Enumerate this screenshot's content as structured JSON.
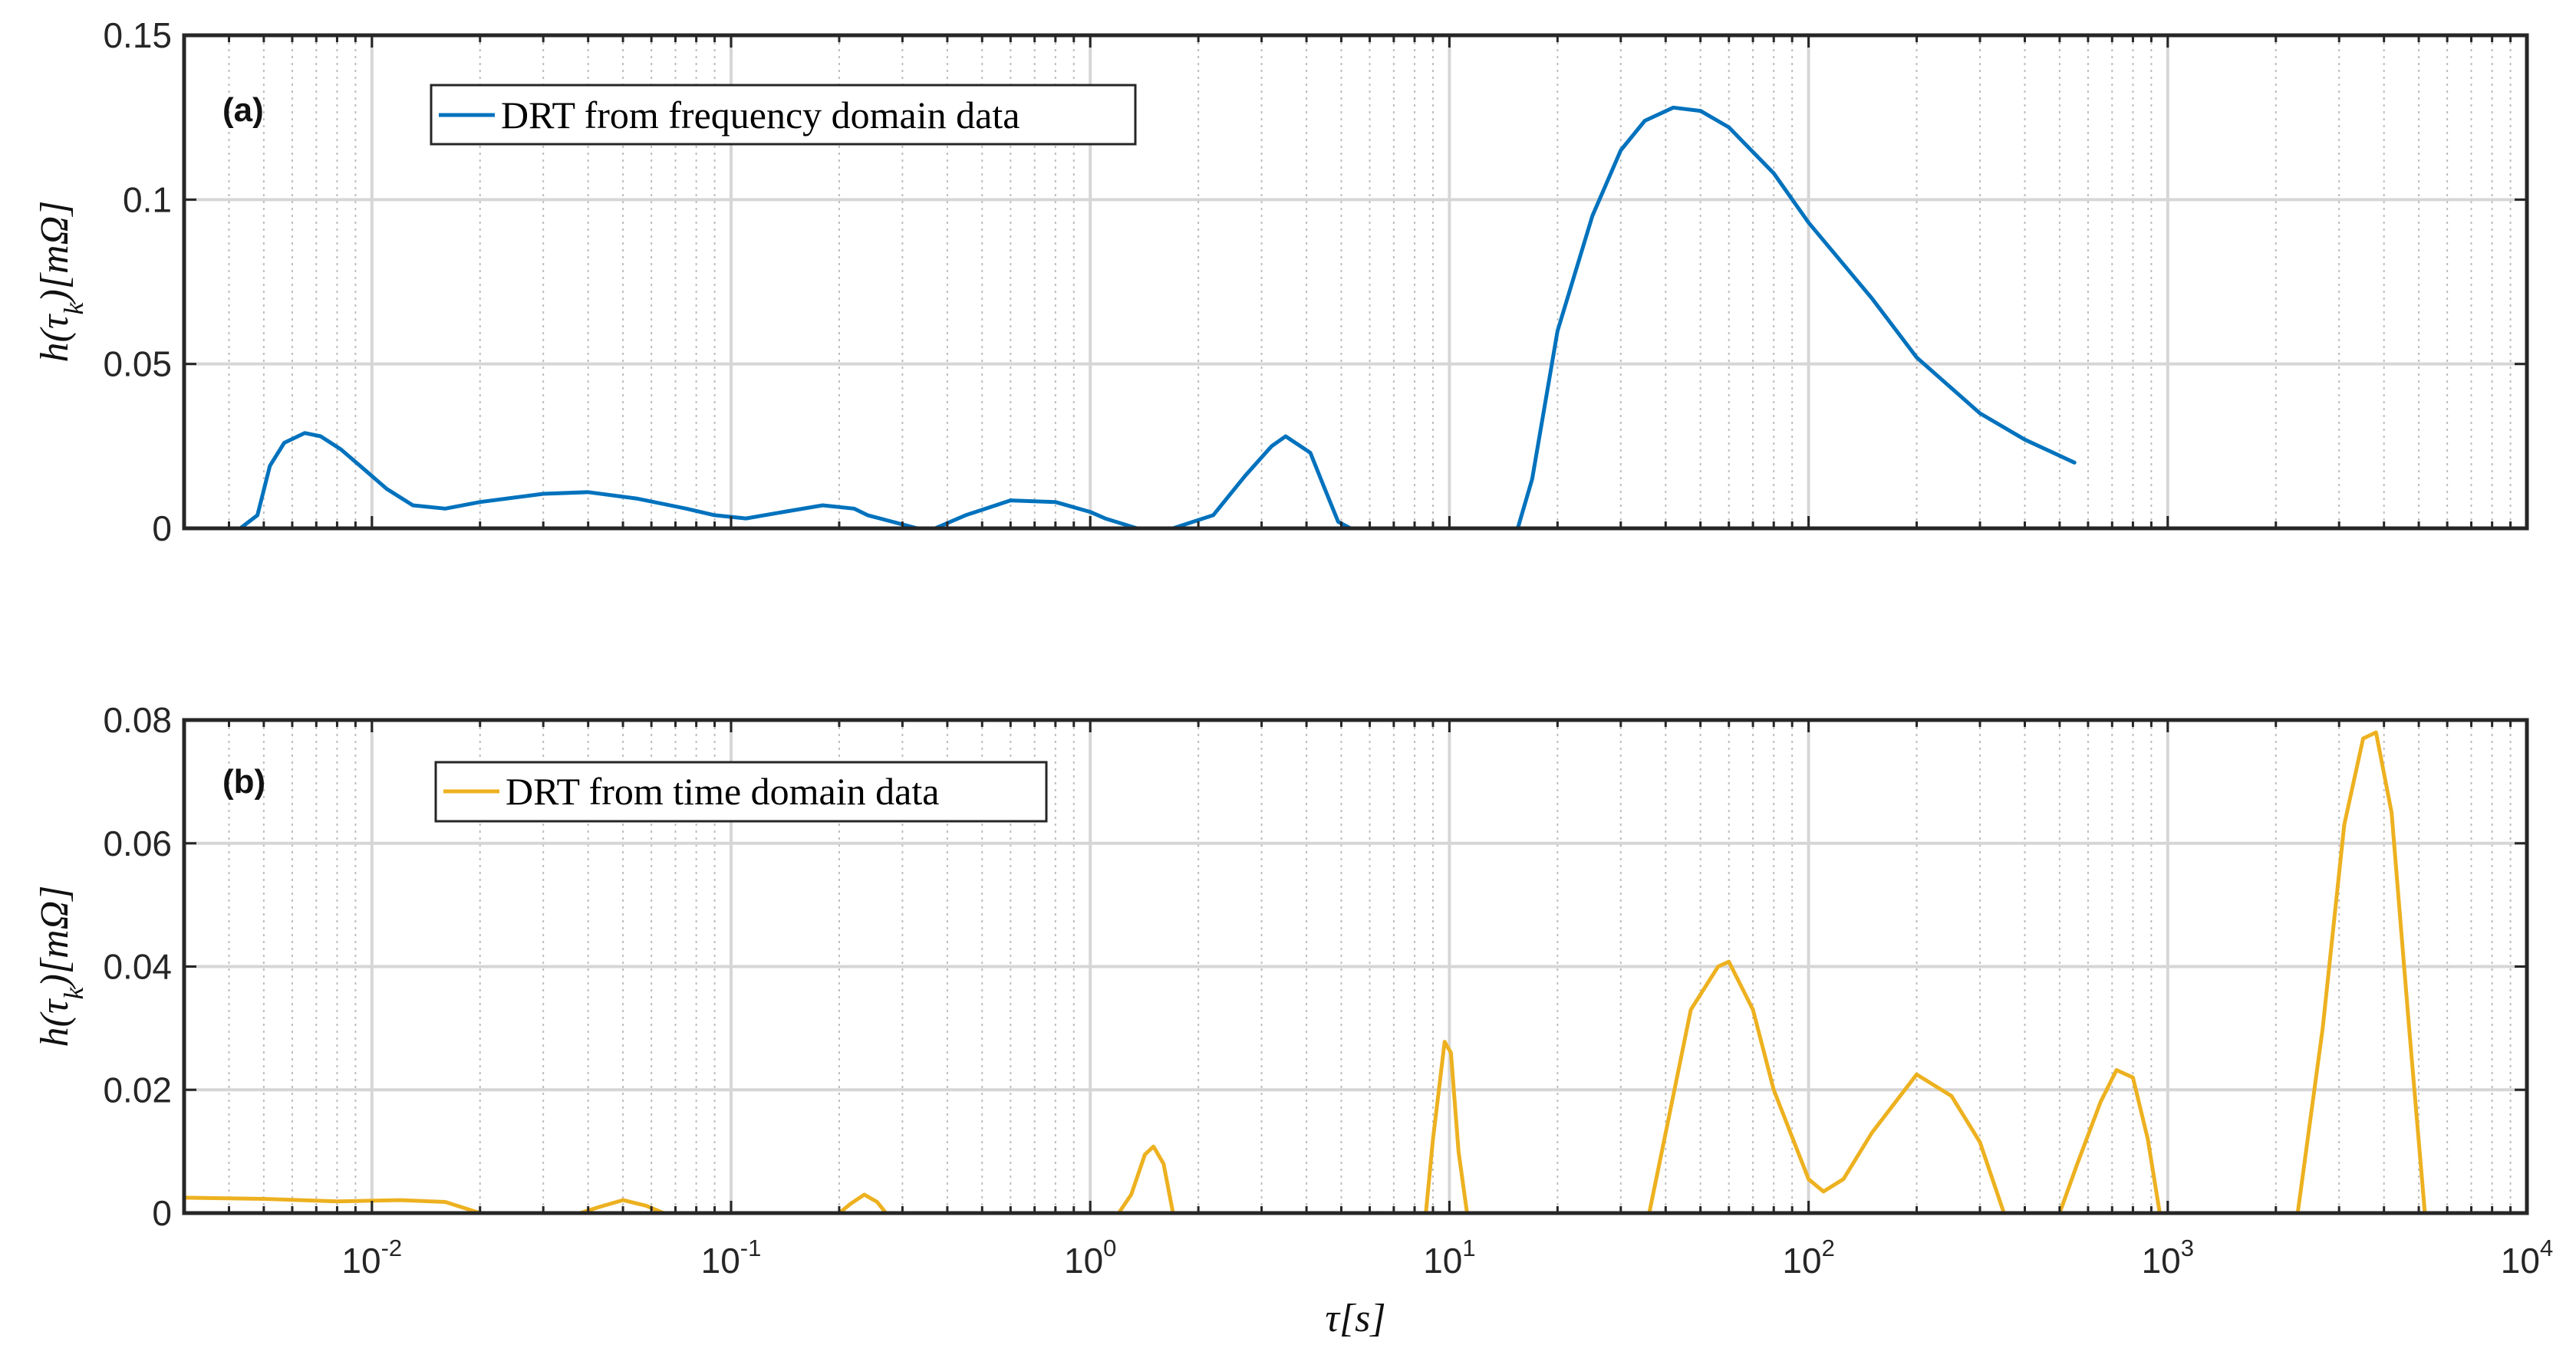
{
  "chart_data": [
    {
      "type": "line",
      "panel_label": "(a)",
      "xlabel": "τ[s]",
      "ylabel": "h(τk)[mΩ]",
      "xscale": "log",
      "xlim": [
        0.003,
        10000
      ],
      "ylim": [
        0,
        0.15
      ],
      "yticks": [
        "0",
        "0.05",
        "0.1",
        "0.15"
      ],
      "xtick_labels": [],
      "grid": "on (major solid, minor dotted)",
      "legend_position": "top-left",
      "series": [
        {
          "name": "DRT from frequency domain data",
          "color": "#0072BD",
          "x": [
            0.003,
            0.0043,
            0.0048,
            0.0052,
            0.0057,
            0.0065,
            0.0072,
            0.0082,
            0.0095,
            0.011,
            0.013,
            0.016,
            0.02,
            0.03,
            0.04,
            0.055,
            0.075,
            0.09,
            0.11,
            0.14,
            0.18,
            0.22,
            0.24,
            0.33,
            0.37,
            0.45,
            0.6,
            0.8,
            1.0,
            1.1,
            1.35,
            1.7,
            2.2,
            2.7,
            3.2,
            3.5,
            4.1,
            4.5,
            4.9,
            5.3,
            15.5,
            17,
            20,
            25,
            30,
            35,
            42,
            50,
            60,
            80,
            100,
            150,
            200,
            300,
            400,
            550
          ],
          "values": [
            0,
            0,
            0.004,
            0.019,
            0.026,
            0.029,
            0.028,
            0.024,
            0.018,
            0.012,
            0.007,
            0.006,
            0.008,
            0.0105,
            0.011,
            0.009,
            0.006,
            0.004,
            0.003,
            0.005,
            0.007,
            0.006,
            0.004,
            0,
            0,
            0.004,
            0.0085,
            0.008,
            0.005,
            0.003,
            0,
            0,
            0.004,
            0.016,
            0.025,
            0.028,
            0.023,
            0.012,
            0.002,
            0,
            0,
            0.015,
            0.06,
            0.095,
            0.115,
            0.124,
            0.128,
            0.127,
            0.122,
            0.108,
            0.093,
            0.07,
            0.052,
            0.035,
            0.027,
            0.02
          ]
        }
      ]
    },
    {
      "type": "line",
      "panel_label": "(b)",
      "xlabel": "τ[s]",
      "ylabel": "h(τk)[mΩ]",
      "xscale": "log",
      "xlim": [
        0.003,
        10000
      ],
      "ylim": [
        0,
        0.08
      ],
      "yticks": [
        "0",
        "0.02",
        "0.04",
        "0.06",
        "0.08"
      ],
      "xtick_labels": [
        "10^-2",
        "10^-1",
        "10^0",
        "10^1",
        "10^2",
        "10^3",
        "10^4"
      ],
      "grid": "on (major solid, minor dotted)",
      "legend_position": "top-left",
      "series": [
        {
          "name": "DRT from time domain data",
          "color": "#EDB120",
          "x": [
            0.003,
            0.005,
            0.008,
            0.012,
            0.016,
            0.02,
            0.038,
            0.043,
            0.05,
            0.058,
            0.065,
            0.2,
            0.215,
            0.235,
            0.255,
            0.27,
            1.2,
            1.3,
            1.42,
            1.5,
            1.6,
            1.7,
            8.6,
            9.0,
            9.7,
            10.1,
            10.6,
            11.2,
            36,
            40,
            47,
            56,
            60,
            70,
            80,
            100,
            110,
            125,
            150,
            200,
            250,
            300,
            350,
            500,
            560,
            650,
            720,
            800,
            880,
            950,
            2300,
            2700,
            3100,
            3500,
            3800,
            4200,
            4700,
            5200,
            10000
          ],
          "values": [
            0.0025,
            0.0023,
            0.0019,
            0.0021,
            0.0018,
            0,
            0,
            0.001,
            0.0021,
            0.0012,
            0,
            0,
            0.0015,
            0.003,
            0.0018,
            0,
            0,
            0.003,
            0.0095,
            0.0108,
            0.008,
            0,
            0,
            0.012,
            0.0278,
            0.026,
            0.01,
            0,
            0,
            0.013,
            0.033,
            0.04,
            0.0408,
            0.033,
            0.02,
            0.0055,
            0.0035,
            0.0055,
            0.013,
            0.0225,
            0.019,
            0.0115,
            0,
            0,
            0.008,
            0.018,
            0.0232,
            0.022,
            0.012,
            0,
            0,
            0.03,
            0.063,
            0.077,
            0.078,
            0.065,
            0.03,
            0,
            0
          ]
        }
      ]
    }
  ]
}
